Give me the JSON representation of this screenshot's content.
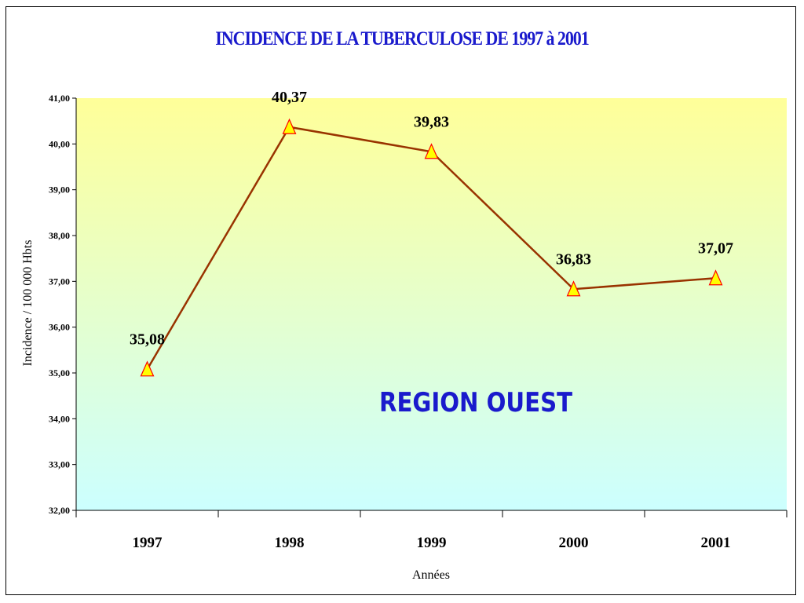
{
  "chart_data": {
    "type": "line",
    "title": "INCIDENCE DE LA TUBERCULOSE DE 1997 à 2001",
    "xlabel": "Années",
    "ylabel": "Incidence / 100 000 Hbts",
    "categories": [
      "1997",
      "1998",
      "1999",
      "2000",
      "2001"
    ],
    "series": [
      {
        "values": [
          35.08,
          40.37,
          39.83,
          36.83,
          37.07
        ],
        "data_labels": [
          "35,08",
          "40,37",
          "39,83",
          "36,83",
          "37,07"
        ]
      }
    ],
    "ylim": [
      32,
      41
    ],
    "yticks": [
      32,
      33,
      34,
      35,
      36,
      37,
      38,
      39,
      40,
      41
    ],
    "ytick_labels": [
      "32,00",
      "33,00",
      "34,00",
      "35,00",
      "36,00",
      "37,00",
      "38,00",
      "39,00",
      "40,00",
      "41,00"
    ],
    "annotation": "REGION OUEST",
    "grid": false,
    "legend": "none",
    "colors": {
      "line": "#993300",
      "marker_fill": "#ffff00",
      "marker_stroke": "#ff0000",
      "title": "#1a1acc",
      "annotation": "#1a1acc",
      "plot_gradient_top": "#ffff99",
      "plot_gradient_bottom": "#ccffff"
    },
    "marker": "triangle"
  }
}
